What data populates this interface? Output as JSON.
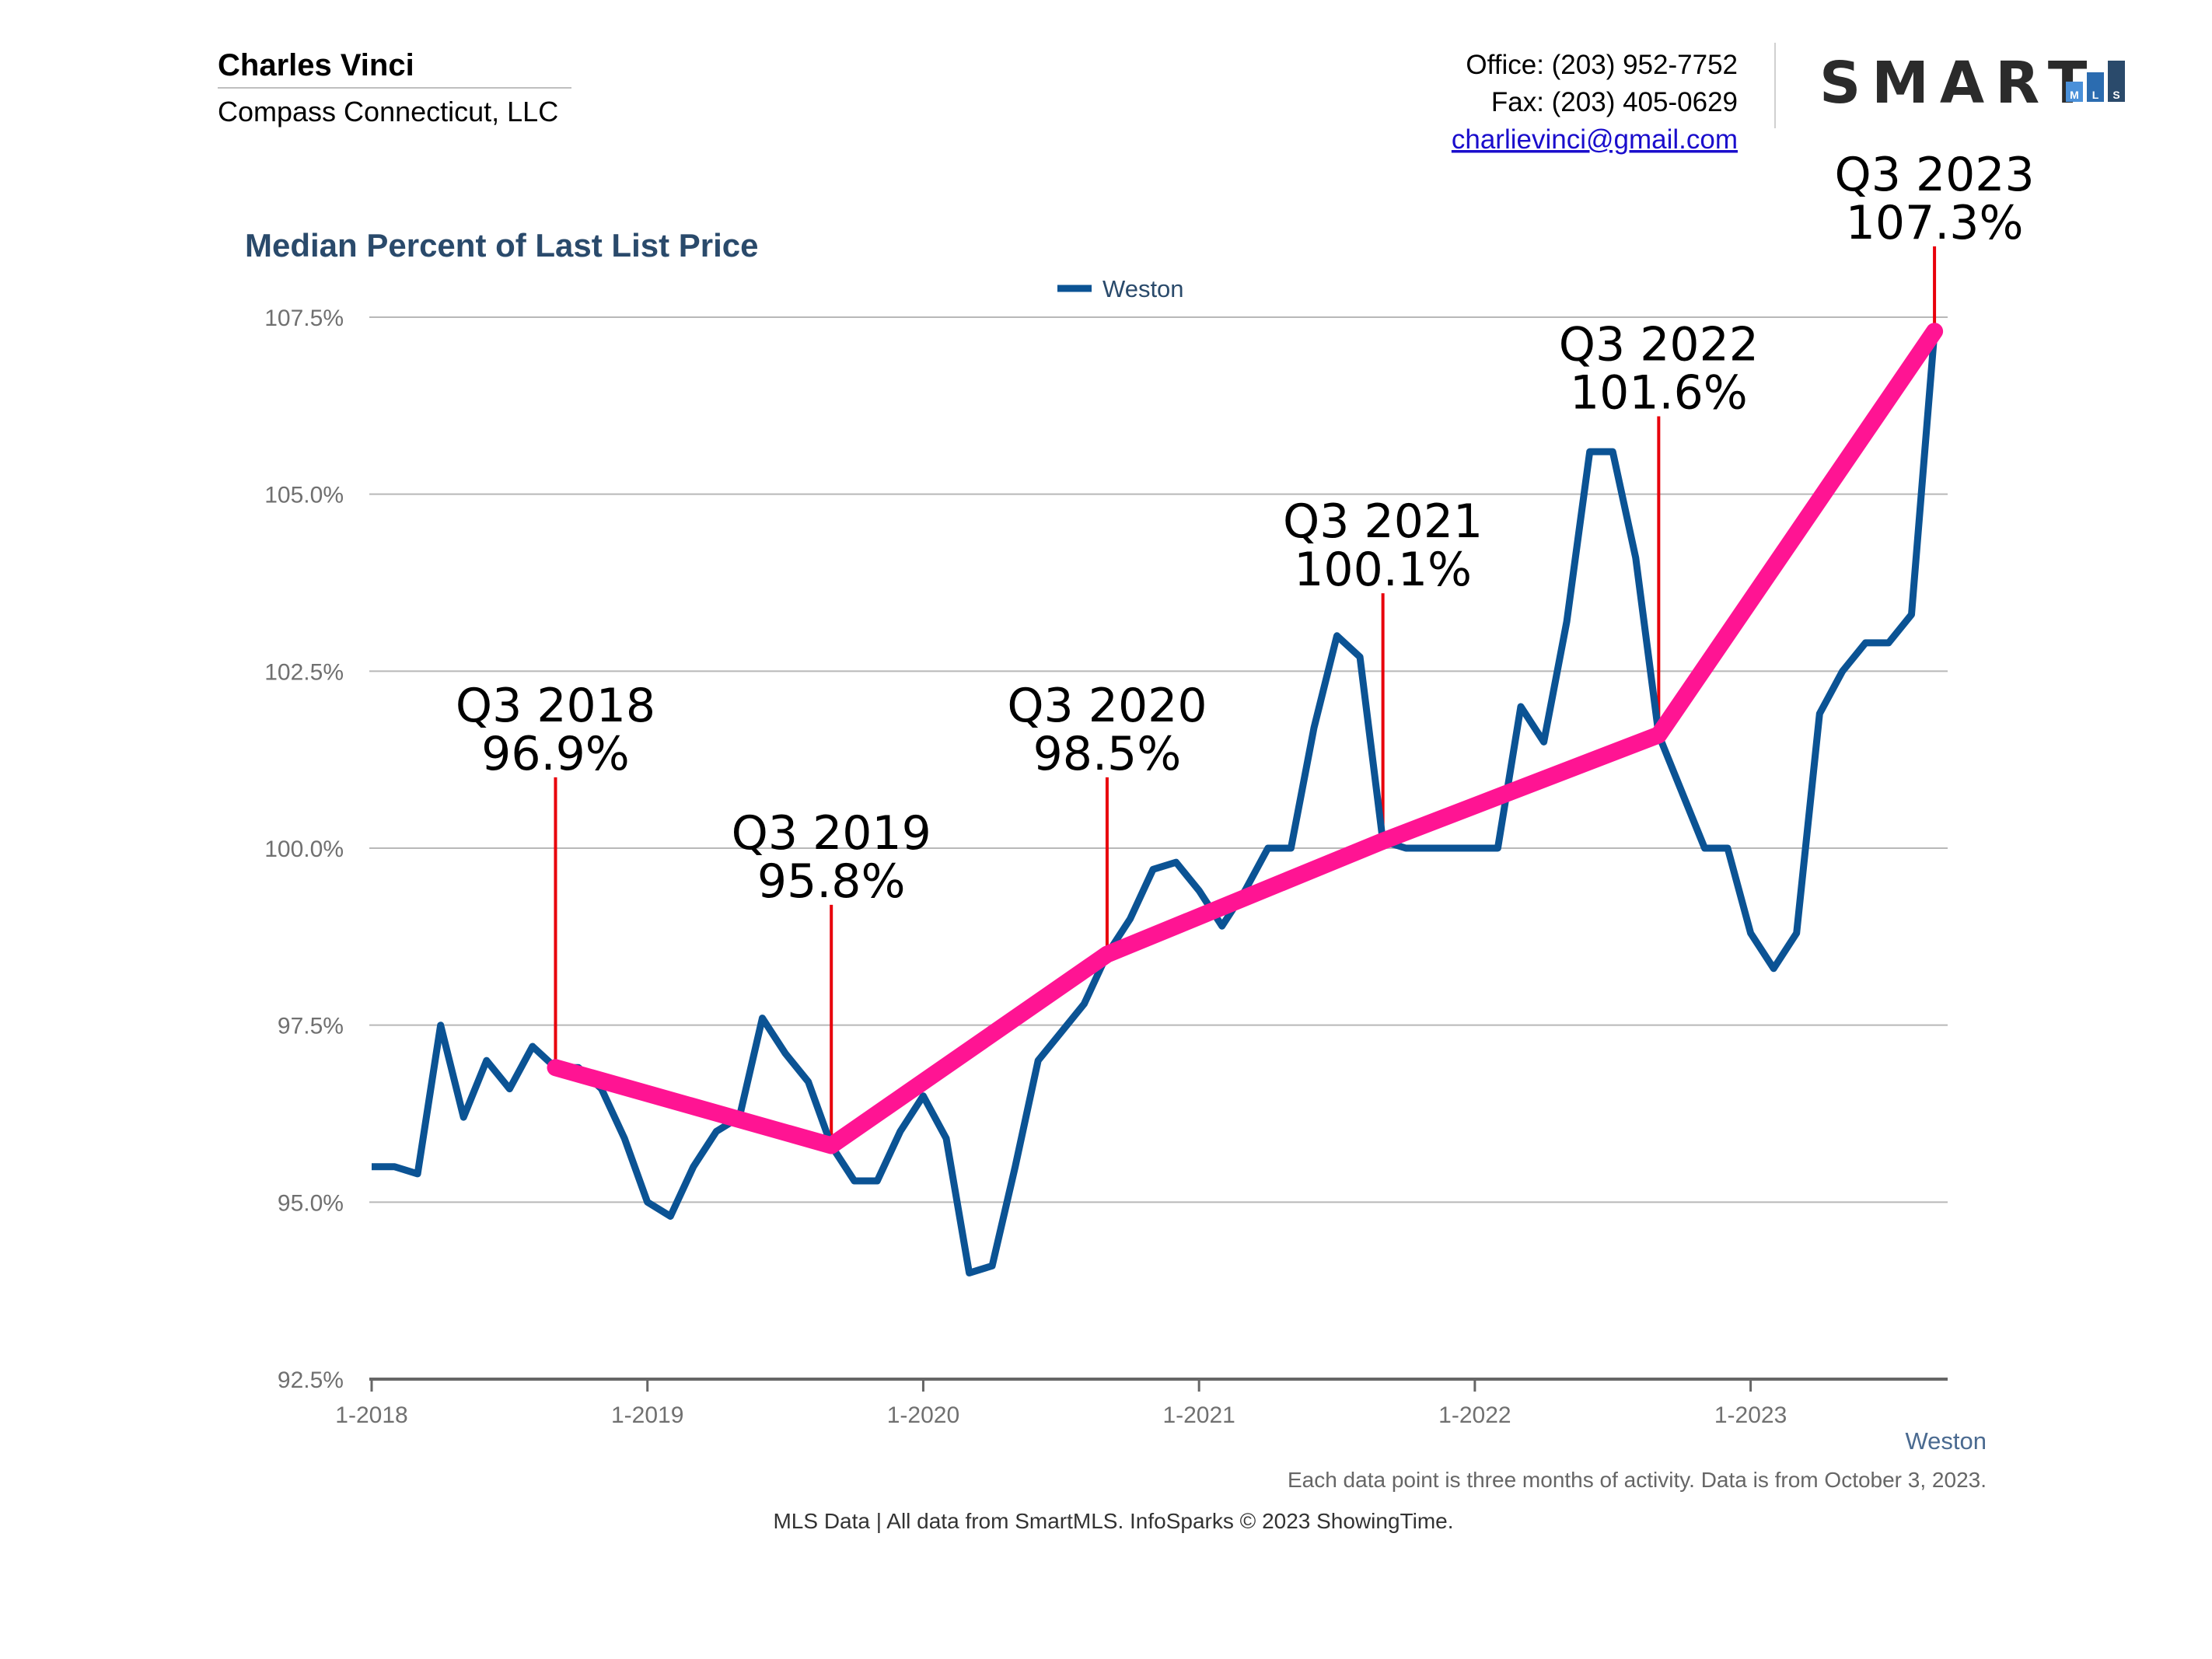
{
  "header": {
    "agent_name": "Charles Vinci",
    "company": "Compass Connecticut, LLC",
    "office": "Office: (203) 952-7752",
    "fax": "Fax: (203) 405-0629",
    "email": "charlievinci@gmail.com",
    "logo_text": "SMART",
    "logo_sub": [
      "M",
      "L",
      "S"
    ]
  },
  "chart_data": {
    "type": "line",
    "title": "Median Percent of Last List Price",
    "legend": [
      {
        "name": "Weston",
        "color": "#0b5394"
      }
    ],
    "legend_position": "top-center",
    "grid": true,
    "ylim": [
      92.5,
      107.5
    ],
    "y_ticks": [
      {
        "value": 107.5,
        "label": "107.5%"
      },
      {
        "value": 105.0,
        "label": "105.0%"
      },
      {
        "value": 102.5,
        "label": "102.5%"
      },
      {
        "value": 100.0,
        "label": "100.0%"
      },
      {
        "value": 97.5,
        "label": "97.5%"
      },
      {
        "value": 95.0,
        "label": "95.0%"
      },
      {
        "value": 92.5,
        "label": "92.5%"
      }
    ],
    "x_range": [
      "2018-01",
      "2023-09"
    ],
    "x_ticks": [
      {
        "date": "2018-01",
        "label": "1-2018"
      },
      {
        "date": "2019-01",
        "label": "1-2019"
      },
      {
        "date": "2020-01",
        "label": "1-2020"
      },
      {
        "date": "2021-01",
        "label": "1-2021"
      },
      {
        "date": "2022-01",
        "label": "1-2022"
      },
      {
        "date": "2023-01",
        "label": "1-2023"
      }
    ],
    "series": [
      {
        "name": "Weston",
        "color": "#0b5394",
        "points": [
          [
            "2018-01",
            95.5
          ],
          [
            "2018-02",
            95.5
          ],
          [
            "2018-03",
            95.4
          ],
          [
            "2018-04",
            97.5
          ],
          [
            "2018-05",
            96.2
          ],
          [
            "2018-06",
            97.0
          ],
          [
            "2018-07",
            96.6
          ],
          [
            "2018-08",
            97.2
          ],
          [
            "2018-09",
            96.9
          ],
          [
            "2018-10",
            96.9
          ],
          [
            "2018-11",
            96.6
          ],
          [
            "2018-12",
            95.9
          ],
          [
            "2019-01",
            95.0
          ],
          [
            "2019-02",
            94.8
          ],
          [
            "2019-03",
            95.5
          ],
          [
            "2019-04",
            96.0
          ],
          [
            "2019-05",
            96.2
          ],
          [
            "2019-06",
            97.6
          ],
          [
            "2019-07",
            97.1
          ],
          [
            "2019-08",
            96.7
          ],
          [
            "2019-09",
            95.8
          ],
          [
            "2019-10",
            95.3
          ],
          [
            "2019-11",
            95.3
          ],
          [
            "2019-12",
            96.0
          ],
          [
            "2020-01",
            96.5
          ],
          [
            "2020-02",
            95.9
          ],
          [
            "2020-03",
            94.0
          ],
          [
            "2020-04",
            94.1
          ],
          [
            "2020-05",
            95.5
          ],
          [
            "2020-06",
            97.0
          ],
          [
            "2020-07",
            97.4
          ],
          [
            "2020-08",
            97.8
          ],
          [
            "2020-09",
            98.5
          ],
          [
            "2020-10",
            99.0
          ],
          [
            "2020-11",
            99.7
          ],
          [
            "2020-12",
            99.8
          ],
          [
            "2021-01",
            99.4
          ],
          [
            "2021-02",
            98.9
          ],
          [
            "2021-03",
            99.4
          ],
          [
            "2021-04",
            100.0
          ],
          [
            "2021-05",
            100.0
          ],
          [
            "2021-06",
            101.7
          ],
          [
            "2021-07",
            103.0
          ],
          [
            "2021-08",
            102.7
          ],
          [
            "2021-09",
            100.1
          ],
          [
            "2021-10",
            100.0
          ],
          [
            "2021-11",
            100.0
          ],
          [
            "2021-12",
            100.0
          ],
          [
            "2022-01",
            100.0
          ],
          [
            "2022-02",
            100.0
          ],
          [
            "2022-03",
            102.0
          ],
          [
            "2022-04",
            101.5
          ],
          [
            "2022-05",
            103.2
          ],
          [
            "2022-06",
            105.6
          ],
          [
            "2022-07",
            105.6
          ],
          [
            "2022-08",
            104.1
          ],
          [
            "2022-09",
            101.6
          ],
          [
            "2022-10",
            100.8
          ],
          [
            "2022-11",
            100.0
          ],
          [
            "2022-12",
            100.0
          ],
          [
            "2023-01",
            98.8
          ],
          [
            "2023-02",
            98.3
          ],
          [
            "2023-03",
            98.8
          ],
          [
            "2023-04",
            101.9
          ],
          [
            "2023-05",
            102.5
          ],
          [
            "2023-06",
            102.9
          ],
          [
            "2023-07",
            102.9
          ],
          [
            "2023-08",
            103.3
          ],
          [
            "2023-09",
            107.3
          ]
        ]
      },
      {
        "name": "",
        "color": "#ff1493",
        "points": [
          [
            "2018-09",
            96.9
          ],
          [
            "2019-09",
            95.8
          ],
          [
            "2020-09",
            98.5
          ],
          [
            "2021-09",
            100.1
          ],
          [
            "2022-09",
            101.6
          ],
          [
            "2023-09",
            107.3
          ]
        ]
      }
    ],
    "annotations": [
      {
        "date": "2018-09",
        "value": 96.9,
        "line1": "Q3 2018",
        "line2": "96.9%",
        "top_value": 101.0
      },
      {
        "date": "2019-09",
        "value": 95.8,
        "line1": "Q3 2019",
        "line2": "95.8%",
        "top_value": 99.2
      },
      {
        "date": "2020-09",
        "value": 98.5,
        "line1": "Q3 2020",
        "line2": "98.5%",
        "top_value": 101.0
      },
      {
        "date": "2021-09",
        "value": 100.1,
        "line1": "Q3 2021",
        "line2": "100.1%",
        "top_value": 103.6
      },
      {
        "date": "2022-09",
        "value": 101.6,
        "line1": "Q3 2022",
        "line2": "101.6%",
        "top_value": 106.1
      },
      {
        "date": "2023-09",
        "value": 107.3,
        "line1": "Q3 2023",
        "line2": "107.3%",
        "top_value": 108.5
      }
    ],
    "x_footer_label": "Weston"
  },
  "footer": {
    "note": "Each data point is three months of activity. Data is from October 3, 2023.",
    "source": "MLS Data | All data from SmartMLS. InfoSparks © 2023 ShowingTime."
  },
  "colors": {
    "series": "#0b5394",
    "trend": "#ff1493",
    "leader": "#e8000b",
    "title": "#2a4a6b",
    "grid": "#b8b8b8"
  }
}
